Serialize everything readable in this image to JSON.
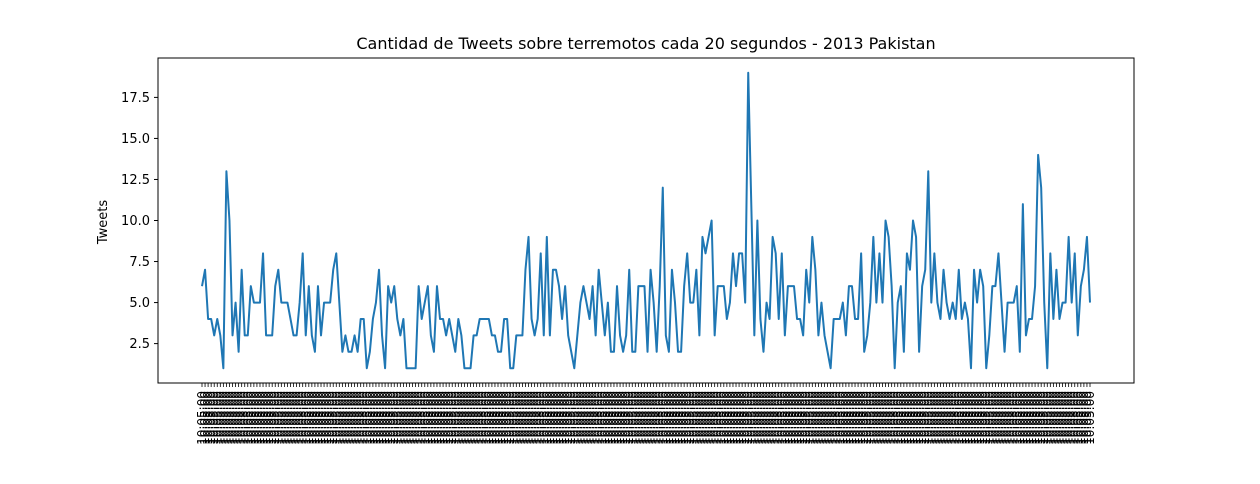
{
  "chart_data": {
    "type": "line",
    "title": "Cantidad de Tweets sobre terremotos cada 20 segundos - 2013 Pakistan",
    "xlabel": "",
    "ylabel": "Tweets",
    "ylim": [
      0.1,
      19.9
    ],
    "yticks": [
      2.5,
      5.0,
      7.5,
      10.0,
      12.5,
      15.0,
      17.5
    ],
    "ytick_labels": [
      "2.5",
      "5.0",
      "7.5",
      "10.0",
      "12.5",
      "15.0",
      "17.5"
    ],
    "line_color": "#1f77b4",
    "grid": false,
    "x_tick_label_sample": "10:05:00",
    "series": [
      {
        "values": [
          6,
          7,
          4,
          4,
          3,
          4,
          3,
          1,
          13,
          10,
          3,
          5,
          2,
          7,
          3,
          3,
          6,
          5,
          5,
          5,
          8,
          3,
          3,
          3,
          6,
          7,
          5,
          5,
          5,
          4,
          3,
          3,
          5,
          8,
          3,
          6,
          3,
          2,
          6,
          3,
          5,
          5,
          5,
          7,
          8,
          5,
          2,
          3,
          2,
          2,
          3,
          2,
          4,
          4,
          1,
          2,
          4,
          5,
          7,
          3,
          1,
          6,
          5,
          6,
          4,
          3,
          4,
          1,
          1,
          1,
          1,
          6,
          4,
          5,
          6,
          3,
          2,
          6,
          4,
          4,
          3,
          4,
          3,
          2,
          4,
          3,
          1,
          1,
          1,
          3,
          3,
          4,
          4,
          4,
          4,
          3,
          3,
          2,
          2,
          4,
          4,
          1,
          1,
          3,
          3,
          3,
          7,
          9,
          4,
          3,
          4,
          8,
          3,
          9,
          3,
          7,
          7,
          6,
          4,
          6,
          3,
          2,
          1,
          3,
          5,
          6,
          5,
          4,
          6,
          3,
          7,
          5,
          3,
          5,
          2,
          2,
          6,
          3,
          2,
          3,
          7,
          2,
          2,
          6,
          6,
          6,
          2,
          7,
          5,
          2,
          6,
          12,
          3,
          2,
          7,
          5,
          2,
          2,
          6,
          8,
          5,
          5,
          7,
          3,
          9,
          8,
          9,
          10,
          3,
          6,
          6,
          6,
          4,
          5,
          8,
          6,
          8,
          8,
          5,
          19,
          11,
          3,
          10,
          4,
          2,
          5,
          4,
          9,
          8,
          4,
          8,
          3,
          6,
          6,
          6,
          4,
          4,
          3,
          7,
          5,
          9,
          7,
          3,
          5,
          3,
          2,
          1,
          4,
          4,
          4,
          5,
          3,
          6,
          6,
          4,
          4,
          8,
          2,
          3,
          5,
          9,
          5,
          8,
          5,
          10,
          9,
          6,
          1,
          5,
          6,
          2,
          8,
          7,
          10,
          9,
          2,
          6,
          7,
          13,
          5,
          8,
          5,
          4,
          7,
          5,
          4,
          5,
          4,
          7,
          4,
          5,
          4,
          1,
          7,
          5,
          7,
          6,
          1,
          3,
          6,
          6,
          8,
          5,
          2,
          5,
          5,
          5,
          6,
          2,
          11,
          3,
          4,
          4,
          6,
          14,
          12,
          5,
          1,
          8,
          4,
          7,
          4,
          5,
          5,
          9,
          5,
          8,
          3,
          6,
          7,
          9,
          5
        ]
      }
    ]
  }
}
